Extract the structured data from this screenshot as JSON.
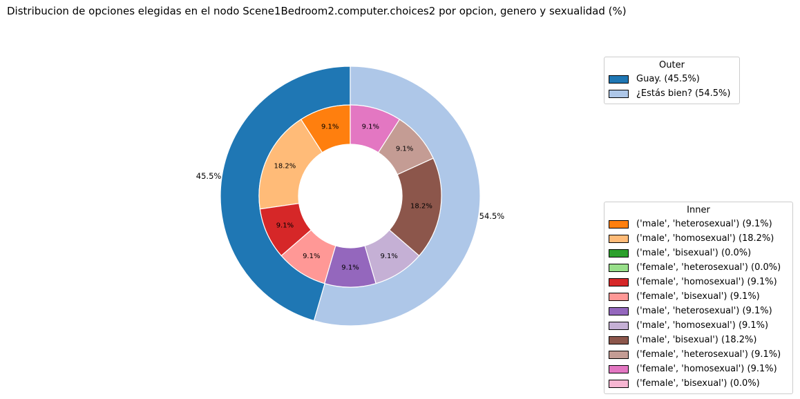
{
  "chart_data": {
    "type": "pie",
    "variant": "nested-donut",
    "title": "Distribucion de opciones elegidas en el nodo Scene1Bedroom2.computer.choices2 por opcion, genero y sexualidad (%)",
    "outer": {
      "legend_title": "Outer",
      "slices": [
        {
          "label": "Guay. (45.5%)",
          "value": 45.5,
          "pct_label": "45.5%",
          "color": "#1f77b4"
        },
        {
          "label": "¿Estás bien? (54.5%)",
          "value": 54.5,
          "pct_label": "54.5%",
          "color": "#aec7e8"
        }
      ]
    },
    "inner": {
      "legend_title": "Inner",
      "slices": [
        {
          "label": "('male', 'heterosexual') (9.1%)",
          "value": 9.1,
          "pct_label": "9.1%",
          "color": "#ff7f0e"
        },
        {
          "label": "('male', 'homosexual') (18.2%)",
          "value": 18.2,
          "pct_label": "18.2%",
          "color": "#ffbb78"
        },
        {
          "label": "('male', 'bisexual') (0.0%)",
          "value": 0.0,
          "pct_label": "",
          "color": "#2ca02c"
        },
        {
          "label": "('female', 'heterosexual') (0.0%)",
          "value": 0.0,
          "pct_label": "",
          "color": "#98df8a"
        },
        {
          "label": "('female', 'homosexual') (9.1%)",
          "value": 9.1,
          "pct_label": "9.1%",
          "color": "#d62728"
        },
        {
          "label": "('female', 'bisexual') (9.1%)",
          "value": 9.1,
          "pct_label": "9.1%",
          "color": "#ff9896"
        },
        {
          "label": "('male', 'heterosexual') (9.1%)",
          "value": 9.1,
          "pct_label": "9.1%",
          "color": "#9467bd"
        },
        {
          "label": "('male', 'homosexual') (9.1%)",
          "value": 9.1,
          "pct_label": "9.1%",
          "color": "#c5b0d5"
        },
        {
          "label": "('male', 'bisexual') (18.2%)",
          "value": 18.2,
          "pct_label": "18.2%",
          "color": "#8c564b"
        },
        {
          "label": "('female', 'heterosexual') (9.1%)",
          "value": 9.1,
          "pct_label": "9.1%",
          "color": "#c49c94"
        },
        {
          "label": "('female', 'homosexual') (9.1%)",
          "value": 9.1,
          "pct_label": "9.1%",
          "color": "#e377c2"
        },
        {
          "label": "('female', 'bisexual') (0.0%)",
          "value": 0.0,
          "pct_label": "",
          "color": "#f7b6d2"
        }
      ]
    },
    "start_angle_deg": 90,
    "direction": "counterclockwise",
    "legend_placement": "right"
  }
}
